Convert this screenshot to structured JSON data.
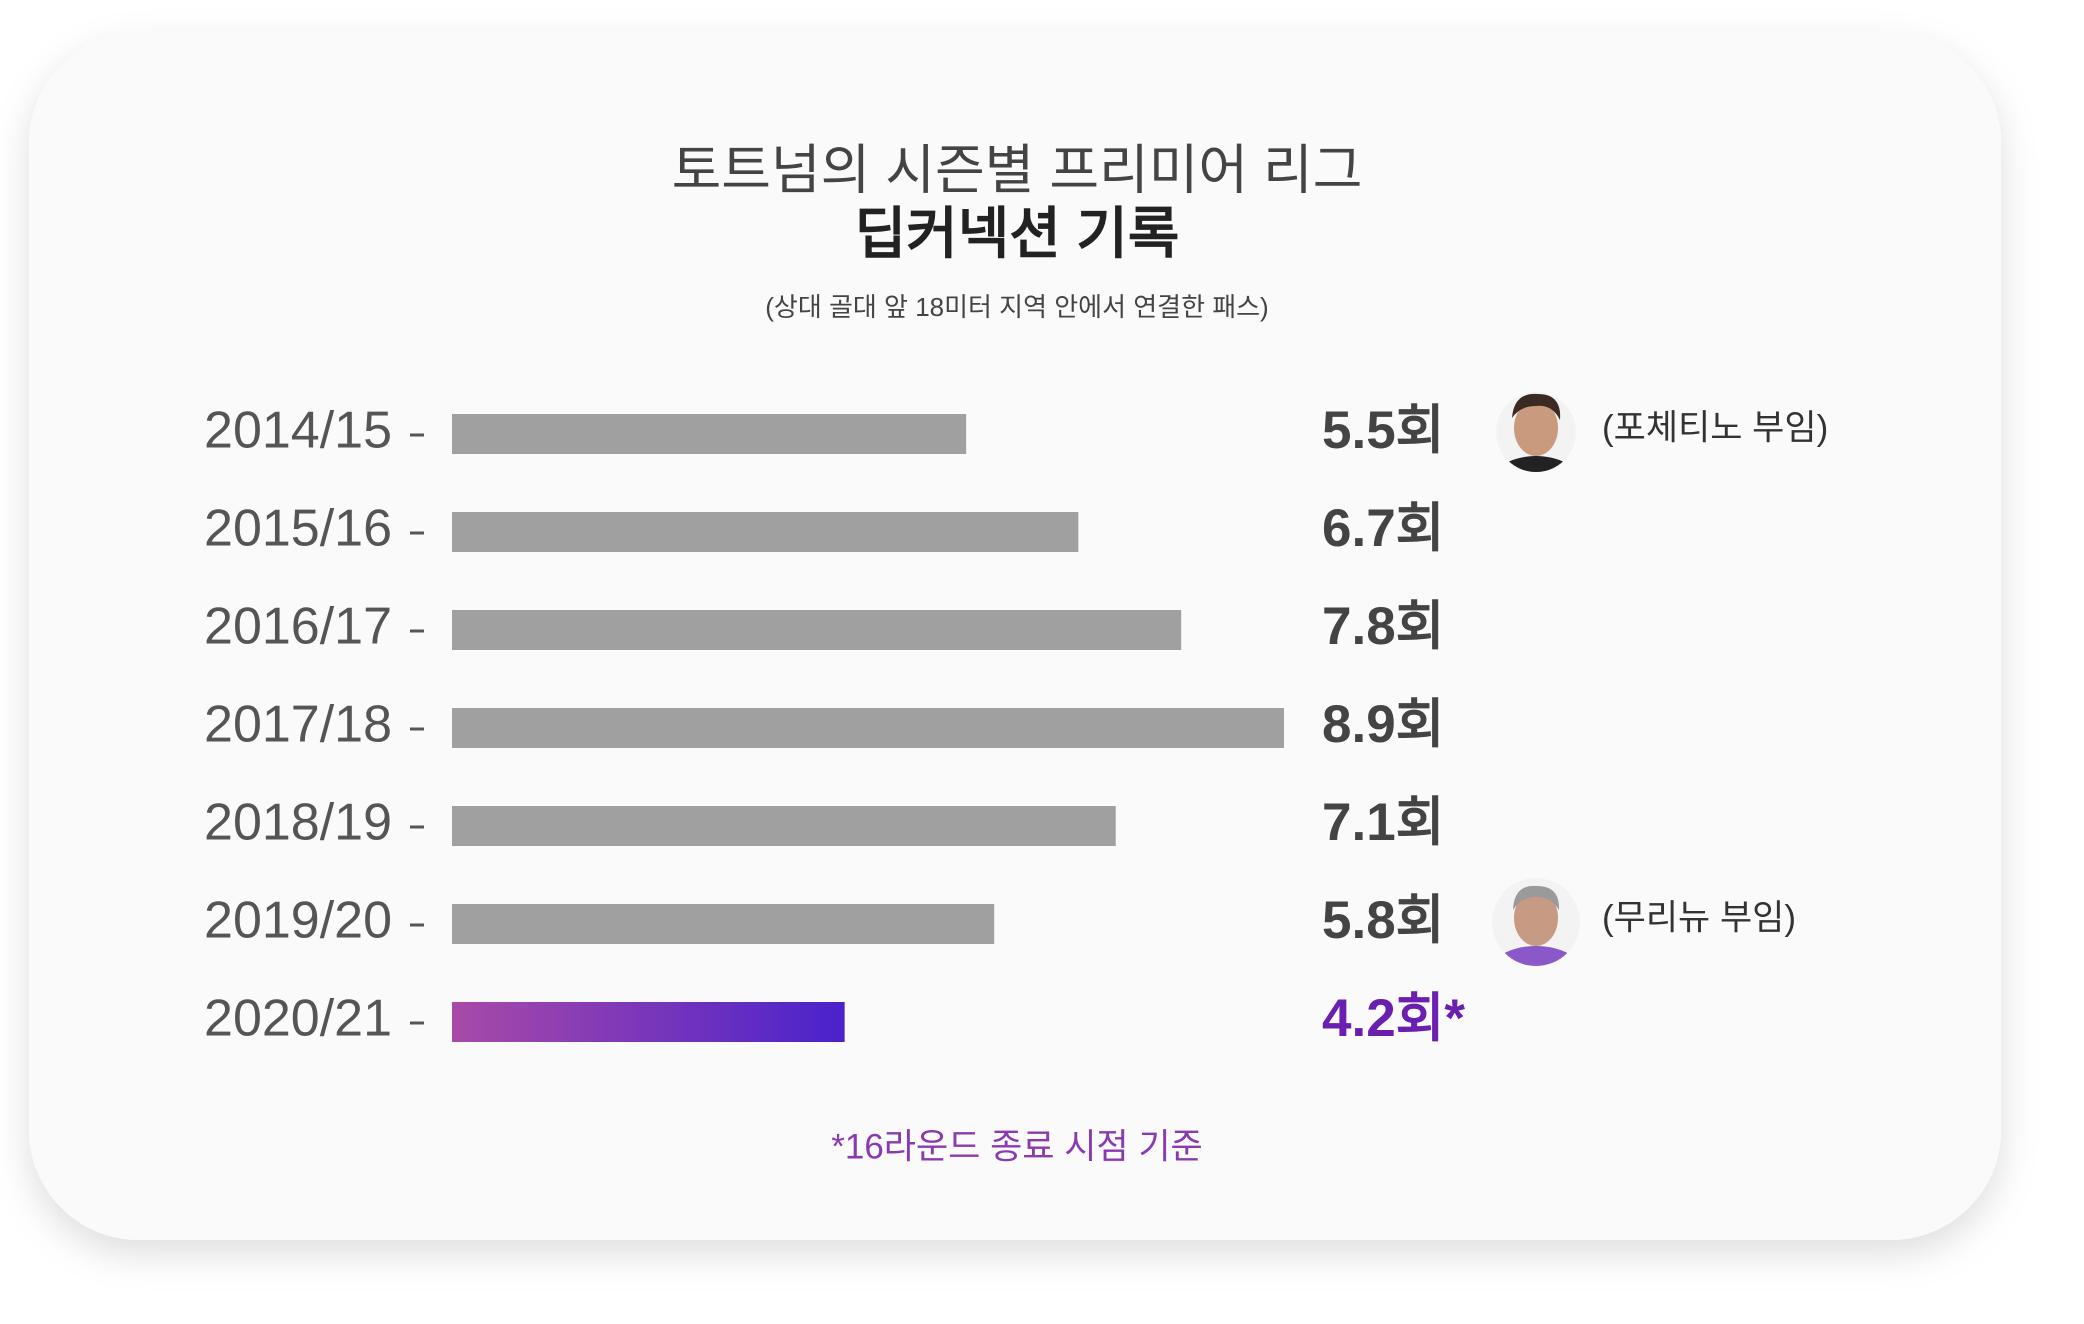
{
  "chart_data": {
    "type": "hbar",
    "title": "토트넘의 시즌별 프리미어 리그",
    "subtitle": "딥커넥션 기록",
    "note": "(상대 골대 앞 18미터 지역 안에서 연결한 패스)",
    "footnote": "*16라운드 종료 시점 기준",
    "categories": [
      "2014/15",
      "2015/16",
      "2016/17",
      "2017/18",
      "2018/19",
      "2019/20",
      "2020/21"
    ],
    "values": [
      5.5,
      6.7,
      7.8,
      8.9,
      7.1,
      5.8,
      4.2
    ],
    "value_labels": [
      "5.5회",
      "6.7회",
      "7.8회",
      "8.9회",
      "7.1회",
      "5.8회",
      "4.2회*"
    ],
    "bar_colors": [
      "#a0a0a0",
      "#a0a0a0",
      "#a0a0a0",
      "#a0a0a0",
      "#a0a0a0",
      "#a0a0a0",
      "#a84aa8"
    ],
    "gradient_end": "#4a22cc",
    "label_colors": [
      "#444444",
      "#444444",
      "#444444",
      "#444444",
      "#444444",
      "#444444",
      "#6a1fb0"
    ],
    "annotations": [
      {
        "index": 0,
        "text": "(포체티노 부임)"
      },
      {
        "index": 5,
        "text": "(무리뉴 부임)"
      }
    ]
  }
}
